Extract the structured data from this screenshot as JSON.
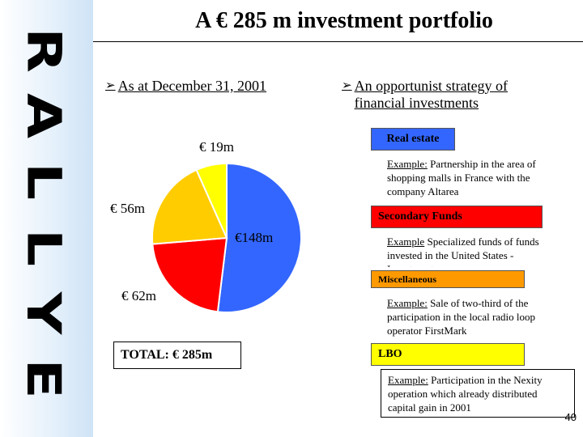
{
  "slide": {
    "title": "A € 285 m investment portfolio",
    "brand": [
      "R",
      "A",
      "L",
      "L",
      "Y",
      "E"
    ],
    "page_number": "40"
  },
  "left": {
    "bullet": "As at December 31, 2001",
    "total": "TOTAL: € 285m"
  },
  "right": {
    "bullet_line1": "An opportunist strategy of",
    "bullet_line2": "financial investments",
    "categories": [
      {
        "name": "Real estate",
        "example_label": "Example:",
        "example_text": " Partnership in the area of shopping malls in France with the company Altarea"
      },
      {
        "name": "Secondary Funds",
        "example_label": "Example",
        "example_text": " Specialized funds of funds invested in the United States - Investments"
      },
      {
        "name": "Miscellaneous",
        "example_label": "Example:",
        "example_text": " Sale of two-third of the participation in the local radio loop operator FirstMark"
      },
      {
        "name": "LBO",
        "example_label": "Example:",
        "example_text": " Participation in the Nexity operation which already distributed capital gain in 2001"
      }
    ]
  },
  "chart_data": {
    "type": "pie",
    "unit": "€ m",
    "slices": [
      {
        "label": "€148m",
        "value": 148,
        "color": "#3366ff"
      },
      {
        "label": "€ 62m",
        "value": 62,
        "color": "#ff0000"
      },
      {
        "label": "€ 56m",
        "value": 56,
        "color": "#ffcc00"
      },
      {
        "label": "€ 19m",
        "value": 19,
        "color": "#ffff00"
      }
    ],
    "start": "12 o'clock",
    "direction": "clockwise"
  }
}
